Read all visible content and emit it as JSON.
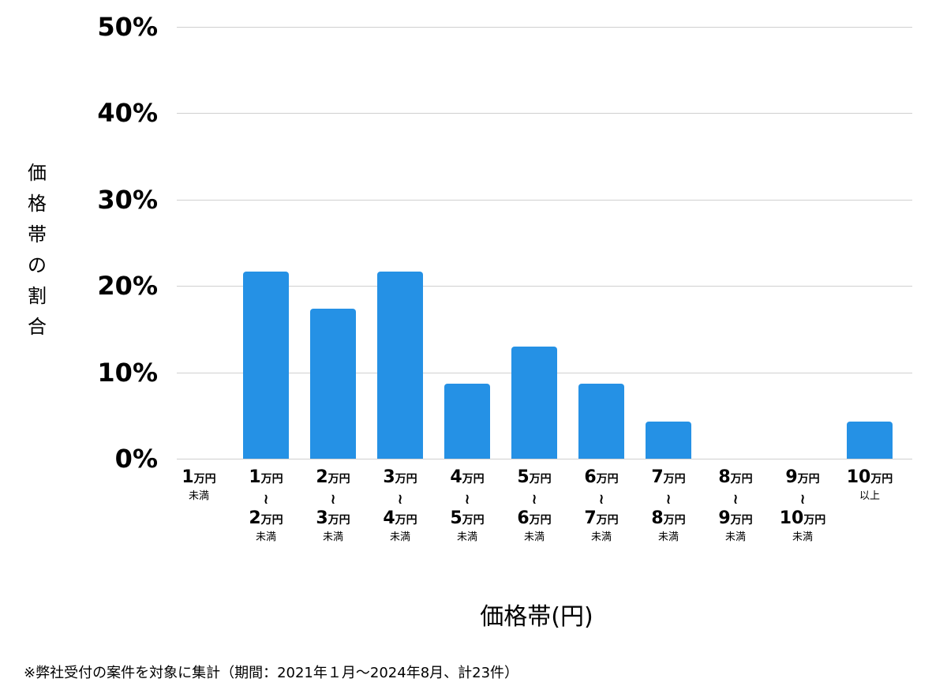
{
  "chart_data": {
    "type": "bar",
    "title": "",
    "xlabel": "価格帯(円)",
    "ylabel": "価格帯の割合",
    "ylim": [
      0,
      50
    ],
    "yticks": [
      "0%",
      "10%",
      "20%",
      "30%",
      "40%",
      "50%"
    ],
    "grid": true,
    "legend": null,
    "color": "#2591e5",
    "categories": [
      "1万円未満",
      "1万円〜2万円未満",
      "2万円〜3万円未満",
      "3万円〜4万円未満",
      "4万円〜5万円未満",
      "5万円〜6万円未満",
      "6万円〜7万円未満",
      "7万円〜8万円未満",
      "8万円〜9万円未満",
      "9万円〜10万円未満",
      "10万円以上"
    ],
    "values": [
      0,
      21.7,
      17.4,
      21.7,
      8.7,
      13.0,
      8.7,
      4.3,
      0,
      0,
      4.3
    ],
    "counts": [
      0,
      5,
      4,
      5,
      2,
      3,
      2,
      1,
      0,
      0,
      1
    ],
    "total": 23
  },
  "axis": {
    "ylabel_chars": [
      "価",
      "格",
      "帯",
      "の",
      "割",
      "合"
    ],
    "xtitle": "価格帯(円)",
    "yticks": [
      {
        "label": "50%",
        "value": 50
      },
      {
        "label": "40%",
        "value": 40
      },
      {
        "label": "30%",
        "value": 30
      },
      {
        "label": "20%",
        "value": 20
      },
      {
        "label": "10%",
        "value": 10
      },
      {
        "label": "0%",
        "value": 0
      }
    ]
  },
  "xlabels": [
    {
      "from": "1",
      "to": null,
      "suffix": "未満"
    },
    {
      "from": "1",
      "to": "2",
      "suffix": "未満"
    },
    {
      "from": "2",
      "to": "3",
      "suffix": "未満"
    },
    {
      "from": "3",
      "to": "4",
      "suffix": "未満"
    },
    {
      "from": "4",
      "to": "5",
      "suffix": "未満"
    },
    {
      "from": "5",
      "to": "6",
      "suffix": "未満"
    },
    {
      "from": "6",
      "to": "7",
      "suffix": "未満"
    },
    {
      "from": "7",
      "to": "8",
      "suffix": "未満"
    },
    {
      "from": "8",
      "to": "9",
      "suffix": "未満"
    },
    {
      "from": "9",
      "to": "10",
      "suffix": "未満"
    },
    {
      "from": "10",
      "to": null,
      "suffix": "以上"
    }
  ],
  "unit": "万円",
  "tilde": "〜",
  "footnote": "※弊社受付の案件を対象に集計（期間：2021年１月〜2024年8月、計23件）"
}
